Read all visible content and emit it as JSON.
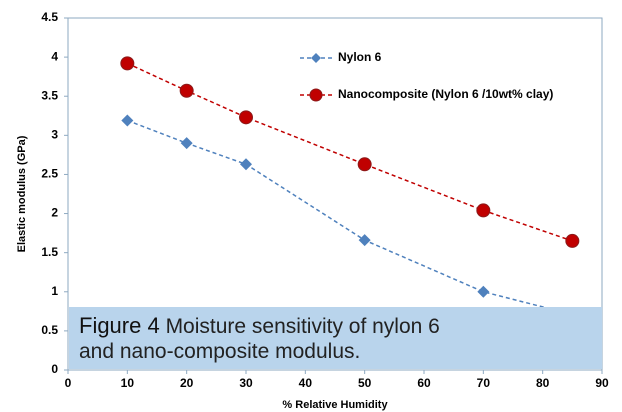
{
  "chart_data": {
    "type": "line",
    "x_label": "% Relative Humidity",
    "y_label": "Elastic modulus (GPa)",
    "x": [
      10,
      20,
      30,
      50,
      70,
      85
    ],
    "series": [
      {
        "name": "Nylon 6",
        "color": "#4f81bd",
        "marker": "diamond",
        "values": [
          3.19,
          2.9,
          2.63,
          1.66,
          1.0,
          0.71
        ]
      },
      {
        "name": "Nanocomposite (Nylon 6 /10wt% clay)",
        "color": "#c00000",
        "marker": "circle",
        "values": [
          3.92,
          3.57,
          3.23,
          2.63,
          2.04,
          1.65
        ]
      }
    ],
    "xlim": [
      0,
      90
    ],
    "xticks": [
      0,
      10,
      20,
      30,
      40,
      50,
      60,
      70,
      80,
      90
    ],
    "ylim": [
      0,
      4.5
    ],
    "yticks": [
      0,
      0.5,
      1,
      1.5,
      2,
      2.5,
      3,
      3.5,
      4,
      4.5
    ],
    "legend": "top",
    "caption_label": "Figure 4",
    "caption": "Moisture sensitivity of nylon 6 and nano-composite modulus."
  }
}
